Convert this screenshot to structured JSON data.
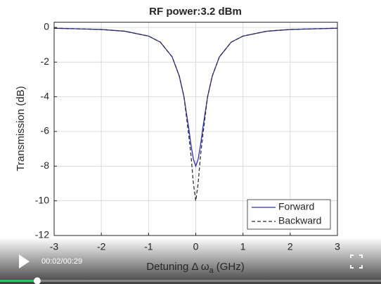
{
  "chart_data": {
    "type": "line",
    "title": "RF power:3.2 dBm",
    "xlabel": "Detuning Δ ω",
    "xlabel_sub": "a",
    "xlabel_unit": "(GHz)",
    "ylabel": "Transmission (dB)",
    "x": [
      -3,
      -2.5,
      -2,
      -1.5,
      -1,
      -0.75,
      -0.5,
      -0.35,
      -0.25,
      -0.15,
      -0.1,
      -0.05,
      0,
      0.05,
      0.1,
      0.15,
      0.25,
      0.35,
      0.5,
      0.75,
      1,
      1.5,
      2,
      2.5,
      3
    ],
    "series": [
      {
        "name": "Forward",
        "color": "#2a2ac0",
        "dash": false,
        "values": [
          -0.05,
          -0.08,
          -0.12,
          -0.22,
          -0.5,
          -0.85,
          -1.7,
          -2.8,
          -4.0,
          -5.8,
          -6.8,
          -7.6,
          -8,
          -7.6,
          -6.8,
          -5.8,
          -4.0,
          -2.8,
          -1.7,
          -0.85,
          -0.5,
          -0.22,
          -0.12,
          -0.08,
          -0.05
        ]
      },
      {
        "name": "Backward",
        "color": "#303030",
        "dash": true,
        "values": [
          -0.05,
          -0.08,
          -0.12,
          -0.22,
          -0.5,
          -0.85,
          -1.7,
          -2.8,
          -4.0,
          -6.2,
          -7.4,
          -9,
          -10,
          -9,
          -7.4,
          -6.2,
          -4.0,
          -2.8,
          -1.7,
          -0.85,
          -0.5,
          -0.22,
          -0.12,
          -0.08,
          -0.05
        ]
      }
    ],
    "xlim": [
      -3,
      3
    ],
    "xticks": [
      -3,
      -2,
      -1,
      0,
      1,
      2,
      3
    ],
    "ylim": [
      -12,
      0.3
    ],
    "yticks": [
      -12,
      -10,
      -8,
      -6,
      -4,
      -2,
      0
    ],
    "grid": true,
    "legend": "lower right"
  },
  "player": {
    "time": "00:02/00:29"
  }
}
